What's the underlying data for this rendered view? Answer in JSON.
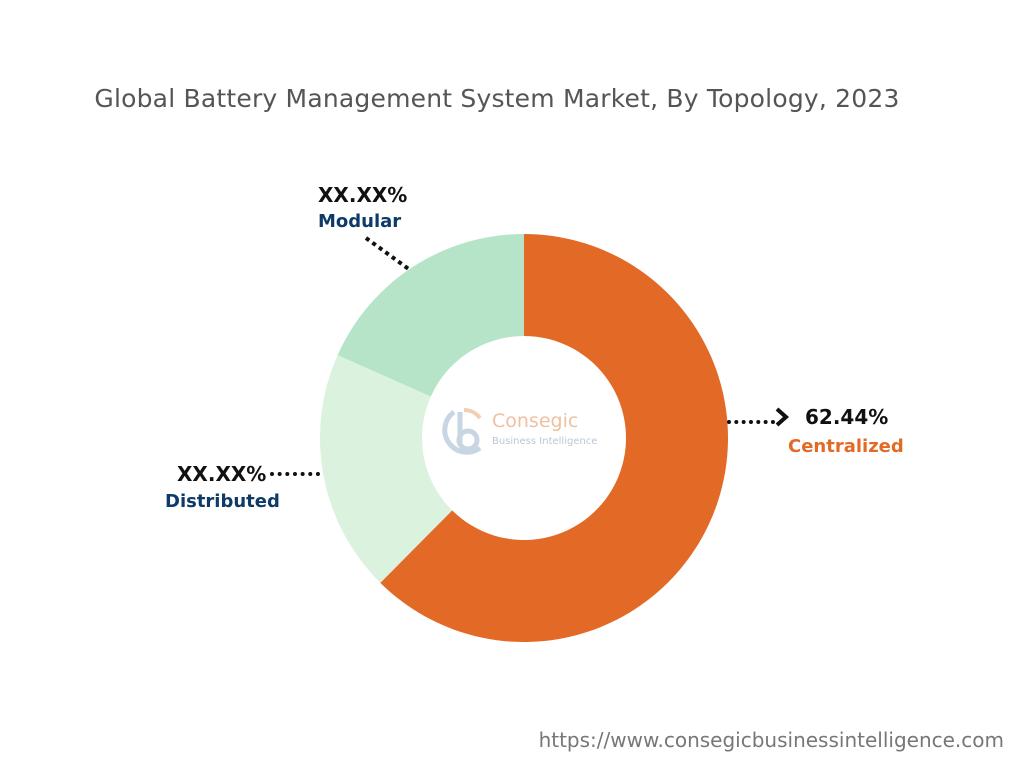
{
  "chart_data": {
    "type": "pie",
    "subtype": "donut",
    "title": "Global Battery Management System Market, By Topology, 2023",
    "categories": [
      "Centralized",
      "Distributed",
      "Modular"
    ],
    "values": [
      62.44,
      19.22,
      18.34
    ],
    "labels": [
      "62.44%",
      "XX.XX%",
      "XX.XX%"
    ],
    "colors": [
      "#E36A26",
      "#DBF2DF",
      "#B6E4C8"
    ],
    "label_colors": [
      "#E36A26",
      "#0D3A66",
      "#0D3A66"
    ],
    "legend": "none"
  },
  "watermark": {
    "line1": "Consegic",
    "line2": "Business Intelligence"
  },
  "footer_url": "https://www.consegicbusinessintelligence.com"
}
